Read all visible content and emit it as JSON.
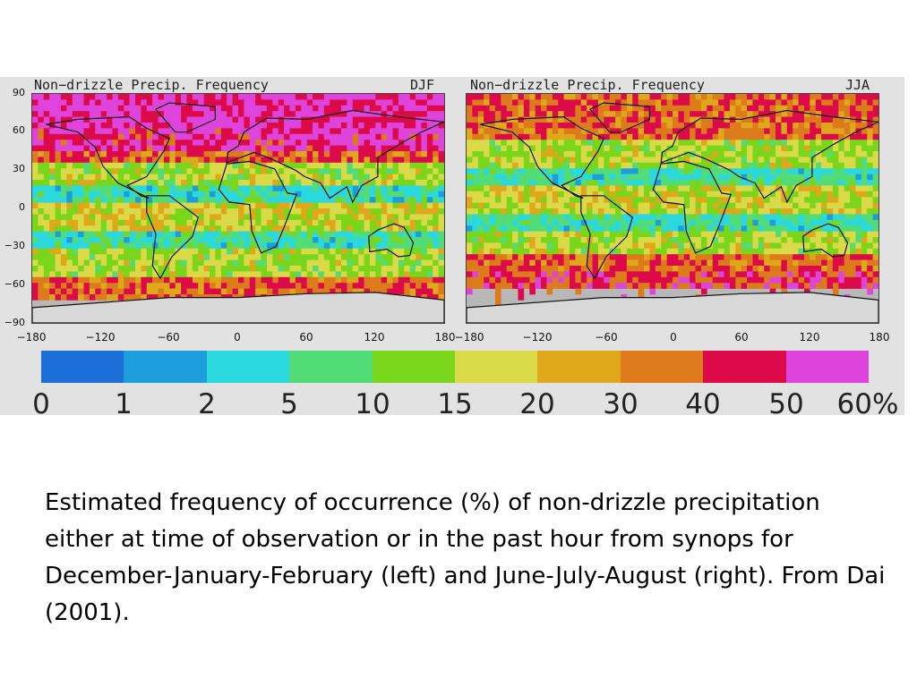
{
  "figure": {
    "panels": [
      {
        "title": "Non−drizzle Precip. Frequency",
        "season": "DJF"
      },
      {
        "title": "Non−drizzle Precip. Frequency",
        "season": "JJA"
      }
    ],
    "lat_ticks": [
      "90",
      "60",
      "30",
      "0",
      "−30",
      "−60",
      "−90"
    ],
    "lon_ticks_left": [
      "−180",
      "−120",
      "−60",
      "0",
      "60",
      "120",
      "180"
    ],
    "lon_ticks_right": [
      "−180",
      "−120",
      "−60",
      "0",
      "60",
      "120",
      "180"
    ],
    "colorbar": {
      "colors": [
        "#1c6fd6",
        "#1c9edc",
        "#2ad8de",
        "#52dc78",
        "#79d61a",
        "#dada48",
        "#dfa81a",
        "#dc7a1c",
        "#dc0a48",
        "#de44dc"
      ],
      "labels": [
        "0",
        "1",
        "2",
        "5",
        "10",
        "15",
        "20",
        "30",
        "40",
        "50",
        "60%"
      ]
    },
    "land_color": "#d8d8d8",
    "coast_color": "#111111"
  },
  "caption": "Estimated frequency of occurrence (%) of non-drizzle precipitation either at time of observation or in the past hour from synops for  December-January-February (left) and June-July-August (right).  From Dai (2001)."
}
